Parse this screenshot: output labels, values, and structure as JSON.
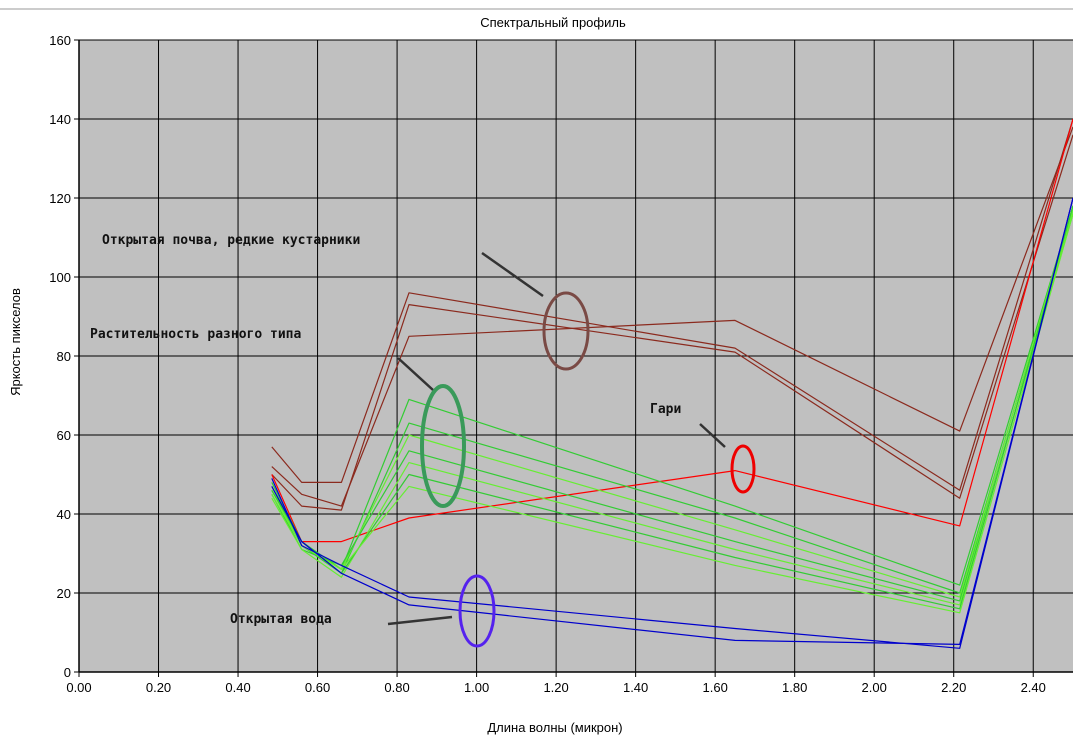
{
  "chart_data": {
    "type": "line",
    "title": "Спектральный профиль",
    "xlabel": "Длина волны (микрон)",
    "ylabel": "Яркость пикселов",
    "xlim": [
      0,
      2.5
    ],
    "ylim": [
      0,
      160
    ],
    "x_ticks": [
      "0.00",
      "0.20",
      "0.40",
      "0.60",
      "0.80",
      "1.00",
      "1.20",
      "1.40",
      "1.60",
      "1.80",
      "2.00",
      "2.20",
      "2.40"
    ],
    "y_ticks": [
      "0",
      "20",
      "40",
      "60",
      "80",
      "100",
      "120",
      "140",
      "160"
    ],
    "grid": true,
    "plot_background": "#c0c0c0",
    "series": [
      {
        "group": "soil",
        "color": "#8b2a1e",
        "x": [
          0.485,
          0.56,
          0.66,
          0.83,
          1.65,
          2.215,
          2.5
        ],
        "y": [
          57,
          48,
          48,
          96,
          82,
          46,
          140
        ]
      },
      {
        "group": "soil",
        "color": "#8b2a1e",
        "x": [
          0.485,
          0.56,
          0.66,
          0.83,
          1.65,
          2.215,
          2.5
        ],
        "y": [
          52,
          45,
          42,
          85,
          89,
          61,
          138
        ]
      },
      {
        "group": "soil",
        "color": "#8b2a1e",
        "x": [
          0.485,
          0.56,
          0.66,
          0.83,
          1.65,
          2.215,
          2.5
        ],
        "y": [
          50,
          42,
          41,
          93,
          81,
          44,
          136
        ]
      },
      {
        "group": "burn",
        "color": "#ff0000",
        "x": [
          0.485,
          0.56,
          0.66,
          0.83,
          1.65,
          2.215,
          2.5
        ],
        "y": [
          50,
          33,
          33,
          39,
          51,
          37,
          140
        ]
      },
      {
        "group": "veg",
        "color": "#33cc33",
        "x": [
          0.485,
          0.56,
          0.66,
          0.83,
          1.65,
          2.215,
          2.5
        ],
        "y": [
          48,
          33,
          26,
          69,
          42,
          22,
          118
        ]
      },
      {
        "group": "veg",
        "color": "#33cc33",
        "x": [
          0.485,
          0.56,
          0.66,
          0.83,
          1.65,
          2.215,
          2.5
        ],
        "y": [
          47,
          32,
          25,
          63,
          39,
          20,
          117
        ]
      },
      {
        "group": "veg",
        "color": "#66ee33",
        "x": [
          0.485,
          0.56,
          0.66,
          0.83,
          1.65,
          2.215,
          2.5
        ],
        "y": [
          46,
          32,
          26,
          60,
          36,
          19,
          118
        ]
      },
      {
        "group": "veg",
        "color": "#33cc33",
        "x": [
          0.485,
          0.56,
          0.66,
          0.83,
          1.65,
          2.215,
          2.5
        ],
        "y": [
          45,
          31,
          27,
          56,
          33,
          18,
          116
        ]
      },
      {
        "group": "veg",
        "color": "#66ee33",
        "x": [
          0.485,
          0.56,
          0.66,
          0.83,
          1.65,
          2.215,
          2.5
        ],
        "y": [
          44,
          31,
          24,
          53,
          31,
          17,
          117
        ]
      },
      {
        "group": "veg",
        "color": "#33cc33",
        "x": [
          0.485,
          0.56,
          0.66,
          0.83,
          1.65,
          2.215,
          2.5
        ],
        "y": [
          46,
          33,
          25,
          50,
          29,
          16,
          118
        ]
      },
      {
        "group": "veg",
        "color": "#66ee33",
        "x": [
          0.485,
          0.56,
          0.66,
          0.83,
          1.65,
          2.215,
          2.5
        ],
        "y": [
          45,
          32,
          26,
          47,
          27,
          15,
          116
        ]
      },
      {
        "group": "water",
        "color": "#0000cc",
        "x": [
          0.485,
          0.56,
          0.66,
          0.83,
          1.65,
          2.215,
          2.5
        ],
        "y": [
          49,
          32,
          27,
          19,
          11,
          6,
          120
        ]
      },
      {
        "group": "water",
        "color": "#0000cc",
        "x": [
          0.485,
          0.56,
          0.66,
          0.83,
          1.65,
          2.215,
          2.5
        ],
        "y": [
          47,
          33,
          25,
          17,
          8,
          7,
          120
        ]
      }
    ],
    "annotations": [
      {
        "text": "Открытая почва, редкие кустарники",
        "color": "#7a4a45"
      },
      {
        "text": "Растительность разного типа",
        "color": "#3a9a5a"
      },
      {
        "text": "Гари",
        "color": "#ee0000"
      },
      {
        "text": "Открытая вода",
        "color": "#5522ee"
      }
    ]
  }
}
